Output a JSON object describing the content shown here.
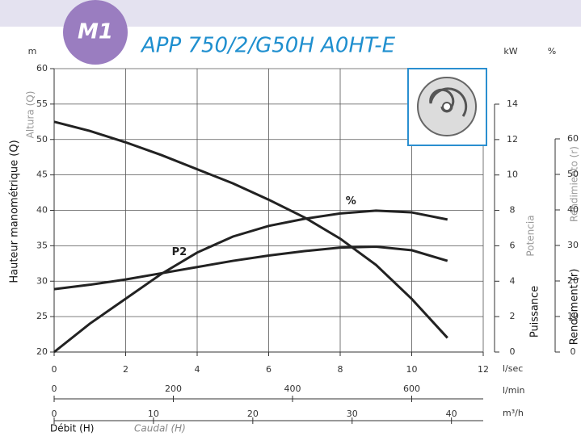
{
  "chart_data": {
    "type": "line",
    "badge": "M1",
    "title": "APP 750/2/G50H A0HT-E",
    "y_unit": "m",
    "y2_unit": "kW",
    "y3_unit": "%",
    "y_label": "Hauteur manométrique (Q)",
    "y_label_alt": "Altura (Q)",
    "y2_label": "Puissance",
    "y2_label_alt": "Potencia",
    "y3_label": "Rendement (r)",
    "y3_label_alt": "Rendimiento (r)",
    "x_label": "Débit (H)",
    "x_label_alt": "Caudal (H)",
    "x_unit": "l/sec",
    "x2_unit": "l/min",
    "x3_unit": "m³/h",
    "x": [
      0,
      1,
      2,
      3,
      4,
      5,
      6,
      7,
      8,
      9,
      10,
      11
    ],
    "series": [
      {
        "color": "#222222",
        "values": [
          52.5,
          51.2,
          49.6,
          47.8,
          45.8,
          43.8,
          41.5,
          39,
          36,
          32.3,
          27.5,
          22
        ]
      },
      {
        "name": "P2",
        "axis": "y2",
        "color": "#222222",
        "values": [
          3.55,
          3.8,
          4.1,
          4.45,
          4.8,
          5.15,
          5.45,
          5.7,
          5.9,
          5.95,
          5.75,
          5.15
        ]
      },
      {
        "name": "%",
        "axis": "y3",
        "color": "#222222",
        "values": [
          0,
          8,
          15,
          22,
          28,
          32.5,
          35.5,
          37.5,
          39,
          39.8,
          39.3,
          37.3
        ]
      }
    ],
    "xlim": [
      0,
      12
    ],
    "xticks": [
      0,
      2,
      4,
      6,
      8,
      10,
      12
    ],
    "x2lim": [
      0,
      720
    ],
    "x2ticks": [
      0,
      200,
      400,
      600
    ],
    "x3lim": [
      0,
      43.2
    ],
    "x3ticks": [
      0,
      10,
      20,
      30,
      40
    ],
    "ylim": [
      20,
      60
    ],
    "yticks": [
      20,
      25,
      30,
      35,
      40,
      45,
      50,
      55,
      60
    ],
    "y2lim": [
      0,
      14
    ],
    "y2ticks": [
      0,
      2,
      4,
      6,
      8,
      10,
      12,
      14
    ],
    "y3lim": [
      0,
      60
    ],
    "y3ticks": [
      0,
      10,
      20,
      30,
      40,
      50,
      60
    ],
    "grid": true
  }
}
